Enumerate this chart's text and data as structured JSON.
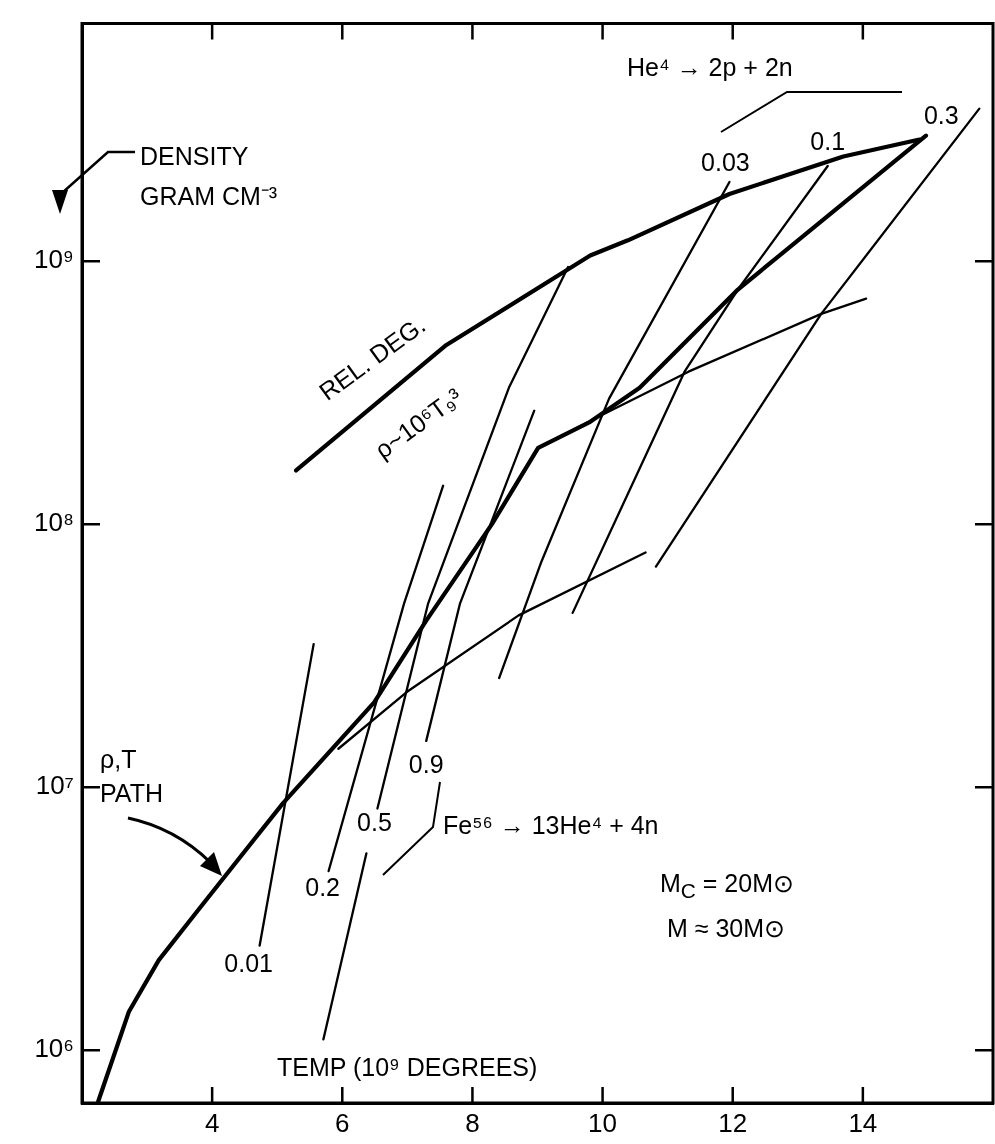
{
  "chart_data": {
    "type": "line",
    "xlabel": "TEMP (10⁹ DEGREES)",
    "ylabel": "DENSITY GRAM CM⁻³",
    "xlim": [
      2,
      16
    ],
    "xticks": [
      4,
      6,
      8,
      10,
      12,
      14
    ],
    "ylim": [
      630000,
      8000000000
    ],
    "yticks": [
      {
        "value": 1000000,
        "label": "10⁶"
      },
      {
        "value": 10000000,
        "label": "10⁷"
      },
      {
        "value": 100000000,
        "label": "10⁸"
      },
      {
        "value": 1000000000,
        "label": "10⁹"
      }
    ],
    "log": true,
    "marker": "none",
    "line_style": "solid",
    "series": [
      {
        "color": "#000000",
        "x": [
          2.25,
          2.72,
          3.18,
          3.78,
          5.09,
          6.49,
          7.29,
          8.3,
          9.01,
          9.81,
          10.57,
          12.08,
          14.97
        ],
        "values": [
          640000,
          1400000,
          2200000,
          3400000,
          8700000,
          21000000,
          43000000,
          100000000,
          195000000,
          245000000,
          330000000,
          780000000,
          3000000000
        ]
      },
      {
        "color": "#000000",
        "x": [
          5.29,
          7.6,
          9.81,
          10.39,
          11.95,
          13.7,
          14.87
        ],
        "values": [
          160000000,
          480000000,
          1050000000,
          1200000000,
          1800000000,
          2500000000,
          2900000000
        ]
      },
      {
        "color": "#000000",
        "x": [
          4.73,
          5.56
        ],
        "values": [
          2500000,
          35000000
        ]
      },
      {
        "color": "#000000",
        "x": [
          5.79,
          6.95,
          7.55
        ],
        "values": [
          4800000,
          50000000,
          140000000
        ]
      },
      {
        "color": "#000000",
        "x": [
          5.71,
          6.37,
          6.45,
          6.54,
          7.32,
          8.56,
          9.47
        ],
        "values": [
          1100000,
          5600000,
          null,
          8300000,
          50000000,
          330000000,
          950000000
        ]
      },
      {
        "color": "#000000",
        "x": [
          7.29,
          7.81,
          8.95
        ],
        "values": [
          15000000,
          50000000,
          270000000
        ]
      },
      {
        "color": "#000000",
        "x": [
          5.94,
          6.99,
          8.71,
          10.66
        ],
        "values": [
          14000000,
          23000000,
          45000000,
          78000000
        ]
      },
      {
        "color": "#000000",
        "x": [
          9.01,
          9.99,
          11.32,
          13.36,
          14.05
        ],
        "values": [
          195000000,
          260000000,
          380000000,
          630000000,
          720000000
        ]
      },
      {
        "color": "#000000",
        "x": [
          8.41,
          9.06,
          10.1,
          11.95
        ],
        "values": [
          26000000,
          72000000,
          300000000,
          2000000000
        ]
      },
      {
        "color": "#000000",
        "x": [
          9.54,
          11.26,
          12.08,
          13.46
        ],
        "values": [
          46000000,
          380000000,
          780000000,
          2300000000
        ]
      },
      {
        "color": "#000000",
        "x": [
          10.82,
          13.36,
          15.79
        ],
        "values": [
          69000000,
          630000000,
          3800000000
        ]
      }
    ],
    "annotations": [
      {
        "text": "0.01",
        "x": 4.73,
        "y": 2500000
      },
      {
        "text": "0.2",
        "x": 5.79,
        "y": 4800000
      },
      {
        "text": "0.5",
        "x": 6.54,
        "y": 8300000
      },
      {
        "text": "0.9",
        "x": 7.29,
        "y": 15000000
      },
      {
        "text": "0.03",
        "x": 11.95,
        "y": 2000000000
      },
      {
        "text": "0.1",
        "x": 13.46,
        "y": 2300000000
      },
      {
        "text": "0.3",
        "x": 15.79,
        "y": 3800000000
      },
      "REL. DEG.",
      "ρ~10⁶T₉³",
      "ρ,T PATH",
      "Fe⁵⁶ → 13He⁴ + 4n",
      "He⁴ → 2p + 2n",
      "M$_{C}$ = 20M⊙",
      "M ≈ 30M⊙"
    ]
  }
}
